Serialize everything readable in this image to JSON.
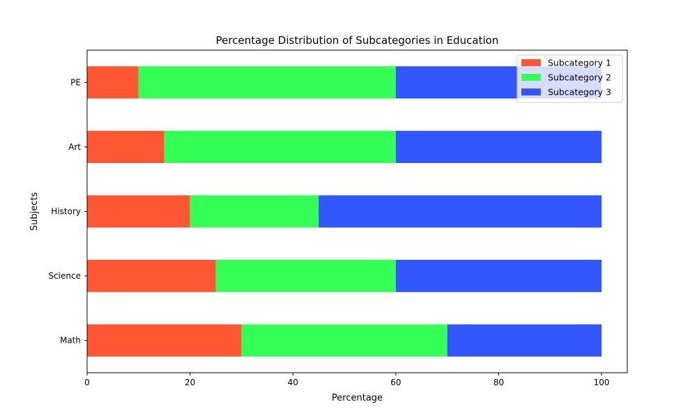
{
  "chart_data": {
    "type": "bar",
    "orientation": "horizontal",
    "stacked": true,
    "title": "Percentage Distribution of Subcategories in Education",
    "xlabel": "Percentage",
    "ylabel": "Subjects",
    "categories": [
      "Math",
      "Science",
      "History",
      "Art",
      "PE"
    ],
    "series": [
      {
        "name": "Subcategory 1",
        "color": "#ff5733",
        "values": [
          30,
          25,
          20,
          15,
          10
        ]
      },
      {
        "name": "Subcategory 2",
        "color": "#33ff57",
        "values": [
          40,
          35,
          25,
          45,
          50
        ]
      },
      {
        "name": "Subcategory 3",
        "color": "#3357ff",
        "values": [
          30,
          40,
          55,
          40,
          40
        ]
      }
    ],
    "xlim": [
      0,
      105
    ],
    "xticks": [
      0,
      20,
      40,
      60,
      80,
      100
    ],
    "grid": false,
    "legend_position": "top-right"
  }
}
